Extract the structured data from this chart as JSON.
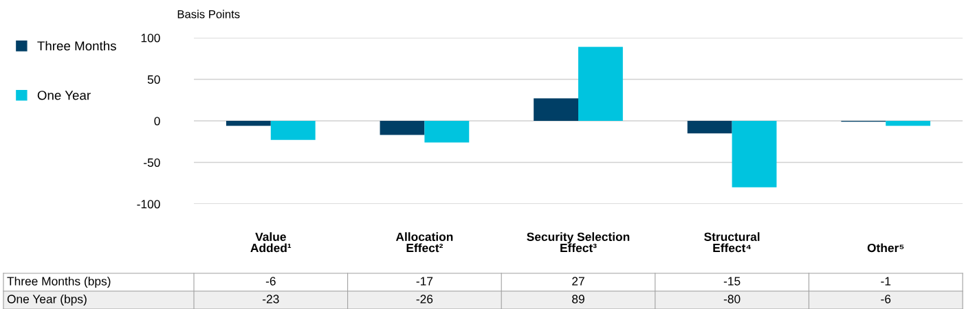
{
  "chart_data": {
    "type": "bar",
    "ylabel": "Basis Points",
    "categories": [
      "Value\nAdded¹",
      "Allocation\nEffect²",
      "Security Selection\nEffect³",
      "Structural\nEffect⁴",
      "Other⁵"
    ],
    "series": [
      {
        "name": "Three Months",
        "color": "#003f66",
        "values": [
          -6,
          -17,
          27,
          -15,
          -1
        ]
      },
      {
        "name": "One Year",
        "color": "#00c4df",
        "values": [
          -23,
          -26,
          89,
          -80,
          -6
        ]
      }
    ],
    "annotations": [
      "Three Months (bps)",
      "One Year (bps)"
    ],
    "data_labels": true,
    "ylim": [
      -100,
      100
    ],
    "yticks": [
      -100,
      -50,
      0,
      50,
      100
    ],
    "grid": "y",
    "legend": "left"
  }
}
